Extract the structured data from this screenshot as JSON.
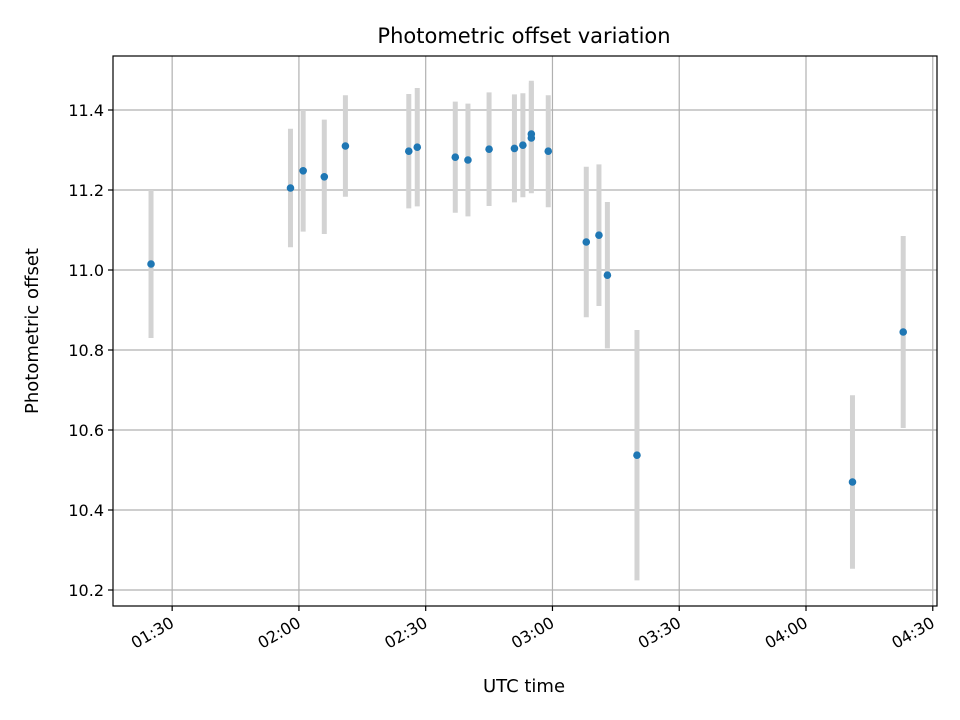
{
  "chart_data": {
    "type": "scatter",
    "title": "Photometric offset variation",
    "xlabel": "UTC time",
    "ylabel": "Photometric offset",
    "grid": true,
    "error_bars": true,
    "point_color": "#1f77b4",
    "errorbar_color": "#d3d3d3",
    "x_ticks": [
      "01:30",
      "02:00",
      "02:30",
      "03:00",
      "03:30",
      "04:00",
      "04:30"
    ],
    "y_ticks": [
      "10.2",
      "10.4",
      "10.6",
      "10.8",
      "11.0",
      "11.2",
      "11.4"
    ],
    "xlim": [
      "01:16",
      "04:31"
    ],
    "ylim": [
      10.16,
      11.535
    ],
    "points": [
      {
        "x": "01:25",
        "y": 11.015,
        "err": 0.185
      },
      {
        "x": "01:58",
        "y": 11.205,
        "err": 0.148
      },
      {
        "x": "02:01",
        "y": 11.248,
        "err": 0.152
      },
      {
        "x": "02:06",
        "y": 11.233,
        "err": 0.143
      },
      {
        "x": "02:11",
        "y": 11.31,
        "err": 0.127
      },
      {
        "x": "02:26",
        "y": 11.297,
        "err": 0.143
      },
      {
        "x": "02:28",
        "y": 11.307,
        "err": 0.148
      },
      {
        "x": "02:37",
        "y": 11.282,
        "err": 0.139
      },
      {
        "x": "02:40",
        "y": 11.275,
        "err": 0.141
      },
      {
        "x": "02:45",
        "y": 11.302,
        "err": 0.142
      },
      {
        "x": "02:51",
        "y": 11.304,
        "err": 0.135
      },
      {
        "x": "02:53",
        "y": 11.312,
        "err": 0.13
      },
      {
        "x": "02:55",
        "y": 11.34,
        "err": 0.133
      },
      {
        "x": "02:55",
        "y": 11.33,
        "err": 0.138
      },
      {
        "x": "02:59",
        "y": 11.297,
        "err": 0.14
      },
      {
        "x": "03:08",
        "y": 11.07,
        "err": 0.188
      },
      {
        "x": "03:11",
        "y": 11.087,
        "err": 0.177
      },
      {
        "x": "03:13",
        "y": 10.987,
        "err": 0.183
      },
      {
        "x": "03:20",
        "y": 10.537,
        "err": 0.313
      },
      {
        "x": "04:11",
        "y": 10.47,
        "err": 0.217
      },
      {
        "x": "04:23",
        "y": 10.845,
        "err": 0.24
      }
    ]
  }
}
